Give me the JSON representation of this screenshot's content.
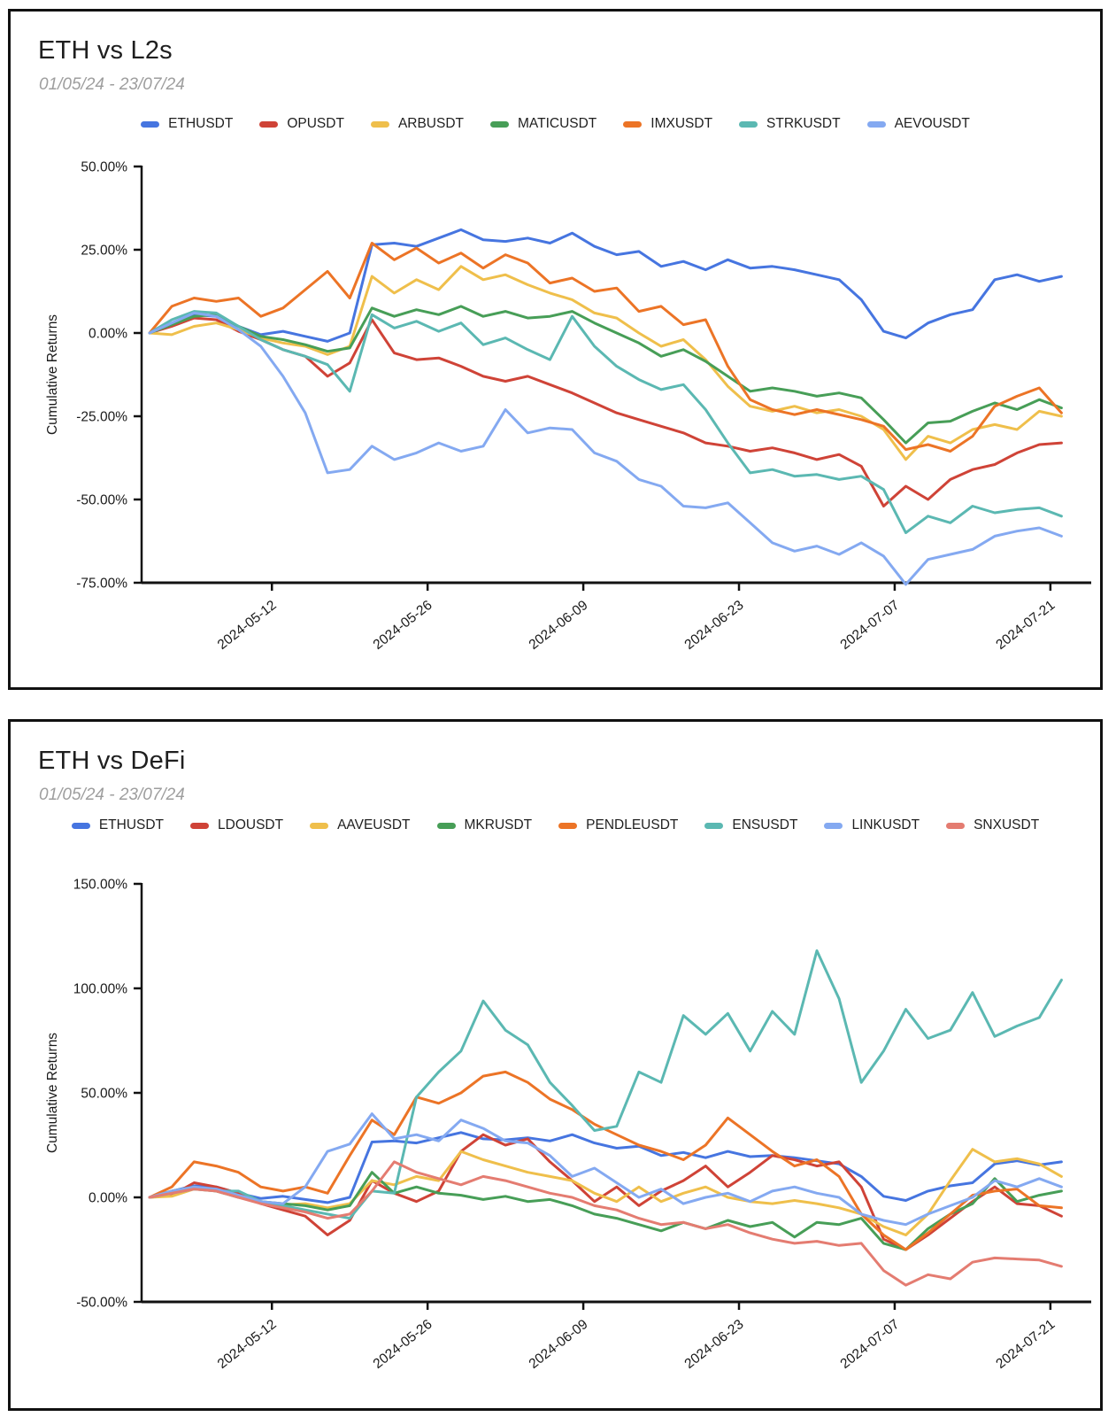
{
  "page": {
    "background": "#ffffff",
    "axis_color": "#111111",
    "text_color": "#1f1f1f",
    "subtitle_color": "#9e9e9e"
  },
  "chart_data": [
    {
      "type": "line",
      "title": "ETH vs L2s",
      "subtitle": "01/05/24 - 23/07/24",
      "ylabel": "Cumulative Returns",
      "y_unit": "%",
      "ylim": [
        -75,
        50
      ],
      "y_ticks": [
        50,
        25,
        0,
        -25,
        -50,
        -75
      ],
      "x_range_days": [
        0,
        83
      ],
      "x_ticks": [
        {
          "day": 11,
          "label": "2024-05-12"
        },
        {
          "day": 25,
          "label": "2024-05-26"
        },
        {
          "day": 39,
          "label": "2024-06-09"
        },
        {
          "day": 53,
          "label": "2024-06-23"
        },
        {
          "day": 67,
          "label": "2024-07-07"
        },
        {
          "day": 81,
          "label": "2024-07-21"
        }
      ],
      "grid": false,
      "legend_position": "top",
      "days": [
        0,
        2,
        4,
        6,
        8,
        10,
        12,
        14,
        16,
        18,
        20,
        22,
        24,
        26,
        28,
        30,
        32,
        34,
        36,
        38,
        40,
        42,
        44,
        46,
        48,
        50,
        52,
        54,
        56,
        58,
        60,
        62,
        64,
        66,
        68,
        70,
        72,
        74,
        76,
        78,
        80,
        82
      ],
      "series": [
        {
          "name": "ETHUSDT",
          "color": "#4675e0",
          "values": [
            0,
            3,
            5.5,
            5,
            2,
            -0.5,
            0.5,
            -1,
            -2.5,
            0,
            26.5,
            27,
            26,
            28.5,
            31,
            28,
            27.5,
            28.5,
            27,
            30,
            26,
            23.5,
            24.5,
            20,
            21.5,
            19,
            22,
            19.5,
            20,
            19,
            17.5,
            16,
            10,
            0.5,
            -1.5,
            3,
            5.5,
            7,
            16,
            17.5,
            15.5,
            17
          ]
        },
        {
          "name": "OPUSDT",
          "color": "#cf4337",
          "values": [
            0,
            2,
            4.5,
            4,
            0.5,
            -2,
            -5,
            -7,
            -13,
            -9,
            4,
            -6,
            -8,
            -7.5,
            -10,
            -13,
            -14.5,
            -13,
            -15.5,
            -18,
            -21,
            -24,
            -26,
            -28,
            -30,
            -33,
            -34,
            -35.5,
            -34.5,
            -36,
            -38,
            -36.5,
            -40,
            -52,
            -46,
            -50,
            -44,
            -41,
            -39.5,
            -36,
            -33.5,
            -33
          ]
        },
        {
          "name": "ARBUSDT",
          "color": "#efbf4b",
          "values": [
            0,
            -0.5,
            2,
            3,
            1,
            -1.5,
            -3,
            -4,
            -6.5,
            -4,
            17,
            12,
            16,
            13,
            20,
            16,
            17.5,
            14.5,
            12,
            10,
            6,
            4.5,
            0,
            -4,
            -2,
            -8,
            -16,
            -22,
            -23.5,
            -22,
            -24,
            -23,
            -25,
            -29,
            -38,
            -31,
            -33,
            -29,
            -27.5,
            -29,
            -23.5,
            -25
          ]
        },
        {
          "name": "MATICUSDT",
          "color": "#479e57",
          "values": [
            0,
            2.5,
            5,
            5.5,
            2,
            -1,
            -2,
            -3.5,
            -5.5,
            -4.5,
            7.5,
            5,
            7,
            5.5,
            8,
            5,
            6.5,
            4.5,
            5,
            6.5,
            3,
            0,
            -3,
            -7,
            -5,
            -8.5,
            -13,
            -17.5,
            -16.5,
            -17.5,
            -19,
            -18,
            -19.5,
            -26,
            -33,
            -27,
            -26.5,
            -23.5,
            -21,
            -23,
            -20,
            -22.5
          ]
        },
        {
          "name": "IMXUSDT",
          "color": "#ec7426",
          "values": [
            0,
            8,
            10.5,
            9.5,
            10.5,
            5,
            7.5,
            13,
            18.5,
            10.5,
            27,
            22,
            25.5,
            21,
            24,
            19.5,
            23.5,
            21,
            15,
            16.5,
            12.5,
            13.5,
            6.5,
            8,
            2.5,
            4,
            -10,
            -20,
            -23,
            -24.5,
            -23,
            -24.5,
            -26,
            -28,
            -35,
            -33.5,
            -35.5,
            -31,
            -22,
            -19,
            -16.5,
            -24
          ]
        },
        {
          "name": "STRKUSDT",
          "color": "#5bb8b2",
          "values": [
            0,
            4,
            6.5,
            6,
            2,
            -2,
            -5,
            -7,
            -9.5,
            -17.5,
            5.5,
            1.5,
            3.5,
            0.5,
            3,
            -3.5,
            -1.5,
            -5,
            -8,
            5,
            -4,
            -10,
            -14,
            -17,
            -15.5,
            -23,
            -33,
            -42,
            -41,
            -43,
            -42.5,
            -44,
            -43,
            -47,
            -60,
            -55,
            -57,
            -52,
            -54,
            -53,
            -52.5,
            -55
          ]
        },
        {
          "name": "AEVOUSDT",
          "color": "#84a9f1",
          "values": [
            0,
            3,
            6,
            5,
            1,
            -4,
            -13,
            -24,
            -42,
            -41,
            -34,
            -38,
            -36,
            -33,
            -35.5,
            -34,
            -23,
            -30,
            -28.5,
            -29,
            -36,
            -38.5,
            -44,
            -46,
            -52,
            -52.5,
            -51,
            -57,
            -63,
            -65.5,
            -64,
            -66.5,
            -63,
            -67,
            -75.5,
            -68,
            -66.5,
            -65,
            -61,
            -59.5,
            -58.5,
            -61
          ]
        }
      ]
    },
    {
      "type": "line",
      "title": "ETH vs DeFi",
      "subtitle": "01/05/24 - 23/07/24",
      "ylabel": "Cumulative Returns",
      "y_unit": "%",
      "ylim": [
        -50,
        150
      ],
      "y_ticks": [
        150,
        100,
        50,
        0,
        -50
      ],
      "x_range_days": [
        0,
        83
      ],
      "x_ticks": [
        {
          "day": 11,
          "label": "2024-05-12"
        },
        {
          "day": 25,
          "label": "2024-05-26"
        },
        {
          "day": 39,
          "label": "2024-06-09"
        },
        {
          "day": 53,
          "label": "2024-06-23"
        },
        {
          "day": 67,
          "label": "2024-07-07"
        },
        {
          "day": 81,
          "label": "2024-07-21"
        }
      ],
      "grid": false,
      "legend_position": "top",
      "days": [
        0,
        2,
        4,
        6,
        8,
        10,
        12,
        14,
        16,
        18,
        20,
        22,
        24,
        26,
        28,
        30,
        32,
        34,
        36,
        38,
        40,
        42,
        44,
        46,
        48,
        50,
        52,
        54,
        56,
        58,
        60,
        62,
        64,
        66,
        68,
        70,
        72,
        74,
        76,
        78,
        80,
        82
      ],
      "series": [
        {
          "name": "ETHUSDT",
          "color": "#4675e0",
          "values": [
            0,
            3,
            5.5,
            5,
            2,
            -0.5,
            0.5,
            -1,
            -2.5,
            0,
            26.5,
            27,
            26,
            28.5,
            31,
            28,
            27.5,
            28.5,
            27,
            30,
            26,
            23.5,
            24.5,
            20,
            21.5,
            19,
            22,
            19.5,
            20,
            19,
            17.5,
            16,
            10,
            0.5,
            -1.5,
            3,
            5.5,
            7,
            16,
            17.5,
            15.5,
            17
          ]
        },
        {
          "name": "LDOUSDT",
          "color": "#cf4337",
          "values": [
            0,
            1,
            7,
            5,
            2,
            -3,
            -6,
            -9,
            -18,
            -11,
            8,
            2,
            -2,
            3,
            22,
            30,
            25,
            28,
            17,
            8,
            -2,
            5,
            -4,
            3,
            8,
            15,
            5,
            12,
            20,
            18,
            15,
            17,
            5,
            -20,
            -25,
            -18,
            -10,
            -2,
            5,
            -3,
            -4,
            -9
          ]
        },
        {
          "name": "AAVEUSDT",
          "color": "#efbf4b",
          "values": [
            0,
            0.5,
            4,
            3,
            0.5,
            -2,
            -3.5,
            -3,
            -5,
            -3,
            8,
            6,
            10,
            8,
            22,
            18,
            15,
            12,
            10,
            8,
            2,
            -2,
            5,
            -2,
            2,
            5,
            0,
            -2,
            -3,
            -1.5,
            -3,
            -5,
            -8,
            -14,
            -18,
            -8,
            8,
            23,
            17,
            18.5,
            16,
            10
          ]
        },
        {
          "name": "MKRUSDT",
          "color": "#479e57",
          "values": [
            0,
            3,
            5,
            3,
            0,
            -2,
            -3,
            -4,
            -6,
            -4,
            12,
            2,
            5,
            2,
            1,
            -1,
            0.5,
            -2,
            -1,
            -4,
            -8,
            -10,
            -13,
            -16,
            -12,
            -15,
            -11,
            -14,
            -12,
            -19,
            -12,
            -13,
            -10,
            -22,
            -25,
            -15,
            -8,
            -3,
            9,
            -2,
            1,
            3
          ]
        },
        {
          "name": "PENDLEUSDT",
          "color": "#ec7426",
          "values": [
            0,
            5,
            17,
            15,
            12,
            5,
            3,
            5,
            2,
            20,
            37,
            30,
            48,
            45,
            50,
            58,
            60,
            55,
            47,
            42,
            35,
            30,
            25,
            22,
            18,
            25,
            38,
            30,
            22,
            15,
            18,
            10,
            -8,
            -18,
            -25,
            -17,
            -8,
            1,
            3,
            4,
            -4,
            -5
          ]
        },
        {
          "name": "ENSUSDT",
          "color": "#5bb8b2",
          "values": [
            0,
            2,
            4,
            3,
            3,
            -2,
            -4,
            -6,
            -8,
            -10,
            3,
            2,
            48,
            60,
            70,
            94,
            80,
            73,
            55,
            44,
            32,
            34,
            60,
            55,
            87,
            78,
            88,
            70,
            89,
            78,
            118,
            95,
            55,
            70,
            90,
            76,
            80,
            98,
            77,
            82,
            86,
            104
          ]
        },
        {
          "name": "LINKUSDT",
          "color": "#84a9f1",
          "values": [
            0,
            3,
            5,
            4,
            1,
            -2,
            -3,
            5,
            22,
            25.5,
            40,
            28,
            30,
            27,
            37,
            33,
            27,
            26,
            20,
            10,
            14,
            7,
            0,
            4,
            -3,
            0,
            2,
            -2,
            3,
            5,
            2,
            0,
            -8,
            -11,
            -13,
            -8,
            -4,
            0,
            8,
            5,
            9,
            5
          ]
        },
        {
          "name": "SNXUSDT",
          "color": "#e47c71",
          "values": [
            0,
            2,
            4,
            3,
            0,
            -3,
            -5,
            -7,
            -10,
            -8,
            3,
            17,
            12,
            9,
            6,
            10,
            8,
            5,
            2,
            0,
            -4,
            -6,
            -10,
            -13,
            -12,
            -15,
            -13,
            -17,
            -20,
            -22,
            -21,
            -23,
            -22,
            -35,
            -42,
            -37,
            -39,
            -31,
            -29,
            -29.5,
            -30,
            -33
          ]
        }
      ]
    }
  ]
}
